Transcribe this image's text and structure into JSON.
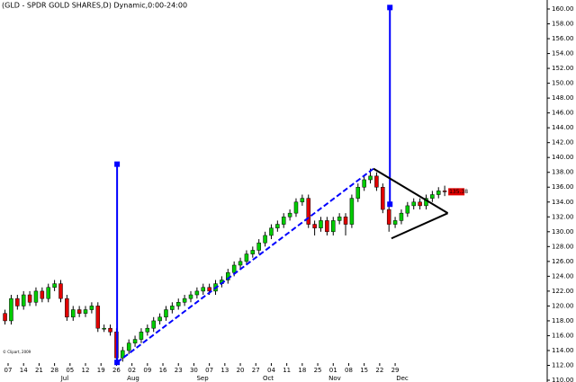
{
  "chart_data": {
    "type": "candlestick",
    "title": "(GLD - SPDR GOLD SHARES,D) Dynamic,0:00-24:00",
    "copyright": "© Clipart, 2009",
    "x": [
      -1,
      1,
      3,
      5,
      7,
      9,
      11,
      13,
      15,
      17,
      19,
      21,
      23,
      25,
      27,
      29,
      31,
      33,
      35,
      37,
      39,
      41,
      43,
      45,
      47,
      49,
      51,
      53,
      55,
      57,
      59,
      61,
      63,
      65,
      67,
      69,
      71,
      73,
      75,
      77,
      79,
      81,
      83,
      85,
      87,
      89,
      91,
      93,
      95,
      97,
      99,
      101,
      103,
      105,
      107,
      109,
      111,
      113,
      115,
      117,
      119,
      121,
      123,
      125,
      127,
      129,
      131,
      133,
      135,
      137,
      139,
      141
    ],
    "open": [
      119,
      118,
      121,
      120,
      121.5,
      120.5,
      122,
      121,
      122.5,
      123,
      121,
      118.5,
      119.5,
      119,
      119.5,
      120,
      117,
      117,
      116.5,
      113,
      114,
      115,
      115.5,
      116.5,
      117,
      118,
      118.5,
      119.5,
      120,
      120.5,
      121,
      121.5,
      122,
      122.5,
      122,
      123,
      123.5,
      124.5,
      125.5,
      126,
      127,
      127.5,
      128.5,
      129.5,
      130.5,
      131,
      132,
      132.5,
      134,
      134.5,
      131,
      130.5,
      131.5,
      130,
      131.5,
      132,
      131,
      134.5,
      136,
      137,
      137.5,
      136,
      133,
      131,
      131.5,
      132.5,
      133.5,
      134,
      133.5,
      134.5,
      135,
      135.5
    ],
    "high": [
      119.5,
      121.5,
      121.5,
      122,
      122,
      122.5,
      122.5,
      123,
      123.5,
      123.5,
      121.5,
      120,
      120,
      120,
      120.5,
      120.5,
      117.5,
      117.5,
      117,
      114.5,
      115.5,
      116,
      117,
      117.5,
      118.5,
      119,
      120,
      120.5,
      121,
      121.5,
      122,
      122.5,
      123,
      123,
      123.5,
      124,
      125,
      126,
      126.5,
      127.5,
      128,
      129,
      130,
      131,
      131.5,
      132.5,
      133,
      134.5,
      135,
      135,
      131.5,
      132,
      132,
      132,
      132.5,
      132.5,
      135,
      136.5,
      137.5,
      138.5,
      138,
      136.5,
      133.5,
      132,
      133,
      134,
      134.5,
      134.5,
      135,
      135.5,
      136,
      136.2
    ],
    "low": [
      117.5,
      117.5,
      119.5,
      119.5,
      120,
      120,
      120.5,
      120.5,
      122,
      120.5,
      118,
      118,
      118.5,
      118.5,
      119,
      116.5,
      116.5,
      116,
      112.5,
      112.5,
      113.5,
      114.5,
      115,
      116,
      116.5,
      117.5,
      118,
      119,
      119.5,
      120,
      120.5,
      121,
      121.5,
      121.5,
      121.5,
      122.5,
      123,
      124,
      125,
      125.5,
      126.5,
      127,
      128,
      129,
      130,
      130.5,
      131.5,
      132,
      133.5,
      130.5,
      129.5,
      130,
      129.5,
      129.5,
      131,
      129.5,
      130.5,
      134,
      135.5,
      136.5,
      135.5,
      132.5,
      130,
      130.5,
      131,
      132,
      133,
      133,
      133,
      134,
      134.5,
      134.8
    ],
    "close": [
      118,
      121,
      120,
      121.5,
      120.5,
      122,
      121,
      122.5,
      123,
      121,
      118.5,
      119.5,
      119,
      119.5,
      120,
      117,
      117,
      116.5,
      113,
      114,
      115,
      115.5,
      116.5,
      117,
      118,
      118.5,
      119.5,
      120,
      120.5,
      121,
      121.5,
      122,
      122.5,
      122,
      123,
      123.5,
      124.5,
      125.5,
      126,
      127,
      127.5,
      128.5,
      129.5,
      130.5,
      131,
      132,
      132.5,
      134,
      134.5,
      131,
      130.5,
      131.5,
      130,
      131.5,
      132,
      131,
      134.5,
      136,
      137,
      137.5,
      136,
      133,
      131,
      131.5,
      132.5,
      133.5,
      134,
      133.5,
      134.5,
      135,
      135.5,
      135.38
    ],
    "last_price_label": "135.38",
    "up_color": "#00cc00",
    "down_color": "#e00000",
    "lines": [
      {
        "color": "#0000ff",
        "dashed": false,
        "markers": true,
        "x": [
          35.2,
          35.2
        ],
        "y": [
          112.4,
          139.1
        ]
      },
      {
        "color": "#0000ff",
        "dashed": false,
        "markers": true,
        "x": [
          123.3,
          123.3
        ],
        "y": [
          133.7,
          160.2
        ]
      },
      {
        "color": "#0000ff",
        "dashed": true,
        "markers": false,
        "x": [
          35.2,
          118
        ],
        "y": [
          112.4,
          138.5
        ]
      },
      {
        "color": "#000000",
        "dashed": false,
        "markers": false,
        "x": [
          118,
          142
        ],
        "y": [
          138.5,
          132.5
        ]
      },
      {
        "color": "#000000",
        "dashed": false,
        "markers": false,
        "x": [
          123.8,
          142
        ],
        "y": [
          129.1,
          132.5
        ]
      }
    ],
    "xlim": [
      -2.616,
      174.1
    ],
    "ylim": [
      109.76,
      161.21
    ],
    "xticks": [
      {
        "value": 0,
        "label": "07"
      },
      {
        "value": 5,
        "label": "14"
      },
      {
        "value": 10,
        "label": "21"
      },
      {
        "value": 15,
        "label": "28"
      },
      {
        "value": 20,
        "label": "05"
      },
      {
        "value": 25,
        "label": "12"
      },
      {
        "value": 30,
        "label": "19"
      },
      {
        "value": 35,
        "label": "26"
      },
      {
        "value": 40,
        "label": "02"
      },
      {
        "value": 45,
        "label": "09"
      },
      {
        "value": 50,
        "label": "16"
      },
      {
        "value": 55,
        "label": "23"
      },
      {
        "value": 60,
        "label": "30"
      },
      {
        "value": 65,
        "label": "07"
      },
      {
        "value": 70,
        "label": "13"
      },
      {
        "value": 75,
        "label": "20"
      },
      {
        "value": 80,
        "label": "27"
      },
      {
        "value": 85,
        "label": "04"
      },
      {
        "value": 90,
        "label": "11"
      },
      {
        "value": 95,
        "label": "18"
      },
      {
        "value": 100,
        "label": "25"
      },
      {
        "value": 105,
        "label": "01"
      },
      {
        "value": 110,
        "label": "08"
      },
      {
        "value": 115,
        "label": "15"
      },
      {
        "value": 120,
        "label": "22"
      },
      {
        "value": 125,
        "label": "29"
      }
    ],
    "month_ticks": [
      {
        "value": 18.3,
        "label": "Jul"
      },
      {
        "value": 40.4,
        "label": "Aug"
      },
      {
        "value": 62.8,
        "label": "Sep"
      },
      {
        "value": 84,
        "label": "Oct"
      },
      {
        "value": 105.5,
        "label": "Nov"
      },
      {
        "value": 127.3,
        "label": "Dec"
      }
    ],
    "yticks": [
      {
        "value": 110,
        "label": "110.00"
      },
      {
        "value": 112,
        "label": "112.00"
      },
      {
        "value": 114,
        "label": "114.00"
      },
      {
        "value": 116,
        "label": "116.00"
      },
      {
        "value": 118,
        "label": "118.00"
      },
      {
        "value": 120,
        "label": "120.00"
      },
      {
        "value": 122,
        "label": "122.00"
      },
      {
        "value": 124,
        "label": "124.00"
      },
      {
        "value": 126,
        "label": "126.00"
      },
      {
        "value": 128,
        "label": "128.00"
      },
      {
        "value": 130,
        "label": "130.00"
      },
      {
        "value": 132,
        "label": "132.00"
      },
      {
        "value": 134,
        "label": "134.00"
      },
      {
        "value": 136,
        "label": "136.00"
      },
      {
        "value": 138,
        "label": "138.00"
      },
      {
        "value": 140,
        "label": "140.00"
      },
      {
        "value": 142,
        "label": "142.00"
      },
      {
        "value": 144,
        "label": "144.00"
      },
      {
        "value": 146,
        "label": "146.00"
      },
      {
        "value": 148,
        "label": "148.00"
      },
      {
        "value": 150,
        "label": "150.00"
      },
      {
        "value": 152,
        "label": "152.00"
      },
      {
        "value": 154,
        "label": "154.00"
      },
      {
        "value": 156,
        "label": "156.00"
      },
      {
        "value": 158,
        "label": "158.00"
      },
      {
        "value": 160,
        "label": "160.00"
      }
    ]
  }
}
